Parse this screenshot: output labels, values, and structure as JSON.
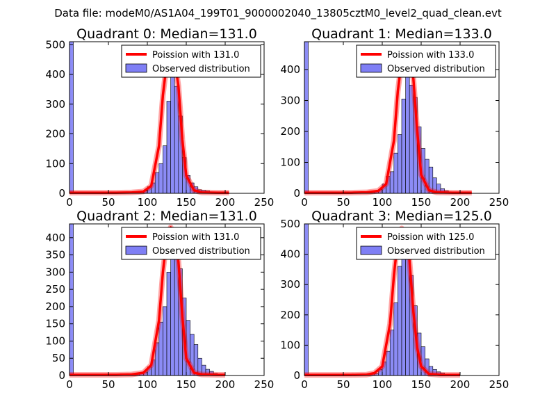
{
  "figure": {
    "suptitle": "Data file: modeM0/AS1A04_199T01_9000002040_13805cztM0_level2_quad_clean.evt"
  },
  "colors": {
    "poisson_line": "#ff0000",
    "hist_fill": "#7f7ff5",
    "hist_edge": "#000000"
  },
  "chart_data": [
    {
      "type": "bar",
      "title": "Quadrant 0: Median=131.0",
      "xlim": [
        0,
        250
      ],
      "ylim": [
        0,
        510
      ],
      "xticks": [
        0,
        50,
        100,
        150,
        200,
        250
      ],
      "yticks": [
        0,
        100,
        200,
        300,
        400,
        500
      ],
      "median": 131.0,
      "legend": [
        "Poission with 131.0",
        "Observed distribution"
      ],
      "legend_loc": "upper right",
      "hist_bins": [
        [
          0,
          510
        ],
        [
          75,
          5
        ],
        [
          80,
          2
        ],
        [
          85,
          4
        ],
        [
          90,
          3
        ],
        [
          95,
          8
        ],
        [
          100,
          22
        ],
        [
          105,
          35
        ],
        [
          110,
          70
        ],
        [
          115,
          100
        ],
        [
          120,
          160
        ],
        [
          125,
          310
        ],
        [
          130,
          400
        ],
        [
          135,
          360
        ],
        [
          140,
          260
        ],
        [
          145,
          120
        ],
        [
          150,
          60
        ],
        [
          155,
          35
        ],
        [
          160,
          22
        ],
        [
          165,
          12
        ],
        [
          170,
          10
        ],
        [
          175,
          8
        ],
        [
          180,
          5
        ],
        [
          185,
          3
        ],
        [
          190,
          2
        ]
      ],
      "poisson_series": [
        [
          0,
          2
        ],
        [
          60,
          2
        ],
        [
          80,
          3
        ],
        [
          95,
          6
        ],
        [
          105,
          25
        ],
        [
          115,
          160
        ],
        [
          120,
          330
        ],
        [
          125,
          440
        ],
        [
          130,
          490
        ],
        [
          135,
          450
        ],
        [
          140,
          360
        ],
        [
          145,
          180
        ],
        [
          150,
          60
        ],
        [
          160,
          10
        ],
        [
          170,
          3
        ],
        [
          190,
          2
        ],
        [
          205,
          2
        ]
      ]
    },
    {
      "type": "bar",
      "title": "Quadrant 1: Median=133.0",
      "xlim": [
        0,
        250
      ],
      "ylim": [
        0,
        490
      ],
      "xticks": [
        0,
        50,
        100,
        150,
        200,
        250
      ],
      "yticks": [
        0,
        100,
        200,
        300,
        400
      ],
      "median": 133.0,
      "legend": [
        "Poission with 133.0",
        "Observed distribution"
      ],
      "legend_loc": "upper right",
      "hist_bins": [
        [
          0,
          490
        ],
        [
          70,
          5
        ],
        [
          75,
          3
        ],
        [
          80,
          6
        ],
        [
          85,
          4
        ],
        [
          90,
          5
        ],
        [
          95,
          12
        ],
        [
          100,
          30
        ],
        [
          105,
          55
        ],
        [
          110,
          70
        ],
        [
          115,
          130
        ],
        [
          120,
          190
        ],
        [
          125,
          305
        ],
        [
          130,
          380
        ],
        [
          135,
          350
        ],
        [
          140,
          310
        ],
        [
          145,
          215
        ],
        [
          150,
          145
        ],
        [
          155,
          110
        ],
        [
          160,
          85
        ],
        [
          165,
          50
        ],
        [
          170,
          30
        ],
        [
          175,
          15
        ],
        [
          180,
          8
        ],
        [
          185,
          4
        ],
        [
          190,
          3
        ]
      ],
      "poisson_series": [
        [
          0,
          2
        ],
        [
          60,
          2
        ],
        [
          80,
          3
        ],
        [
          95,
          8
        ],
        [
          105,
          30
        ],
        [
          115,
          170
        ],
        [
          120,
          330
        ],
        [
          125,
          430
        ],
        [
          130,
          465
        ],
        [
          135,
          450
        ],
        [
          140,
          370
        ],
        [
          145,
          200
        ],
        [
          150,
          60
        ],
        [
          160,
          10
        ],
        [
          170,
          3
        ],
        [
          190,
          2
        ],
        [
          215,
          2
        ]
      ]
    },
    {
      "type": "bar",
      "title": "Quadrant 2: Median=131.0",
      "xlim": [
        0,
        250
      ],
      "ylim": [
        0,
        440
      ],
      "xticks": [
        0,
        50,
        100,
        150,
        200,
        250
      ],
      "yticks": [
        0,
        50,
        100,
        150,
        200,
        250,
        300,
        350,
        400
      ],
      "median": 131.0,
      "legend": [
        "Poission with 131.0",
        "Observed distribution"
      ],
      "legend_loc": "upper right",
      "hist_bins": [
        [
          0,
          440
        ],
        [
          65,
          5
        ],
        [
          75,
          3
        ],
        [
          85,
          4
        ],
        [
          90,
          5
        ],
        [
          95,
          10
        ],
        [
          100,
          25
        ],
        [
          105,
          45
        ],
        [
          110,
          95
        ],
        [
          115,
          155
        ],
        [
          120,
          200
        ],
        [
          125,
          300
        ],
        [
          130,
          380
        ],
        [
          135,
          340
        ],
        [
          140,
          310
        ],
        [
          145,
          225
        ],
        [
          150,
          160
        ],
        [
          155,
          120
        ],
        [
          160,
          90
        ],
        [
          165,
          50
        ],
        [
          170,
          30
        ],
        [
          175,
          18
        ],
        [
          180,
          12
        ],
        [
          185,
          6
        ],
        [
          190,
          4
        ],
        [
          195,
          2
        ]
      ],
      "poisson_series": [
        [
          0,
          2
        ],
        [
          60,
          2
        ],
        [
          80,
          3
        ],
        [
          95,
          8
        ],
        [
          105,
          30
        ],
        [
          115,
          160
        ],
        [
          120,
          300
        ],
        [
          125,
          400
        ],
        [
          130,
          430
        ],
        [
          135,
          410
        ],
        [
          140,
          330
        ],
        [
          145,
          170
        ],
        [
          150,
          50
        ],
        [
          160,
          8
        ],
        [
          170,
          3
        ],
        [
          190,
          2
        ],
        [
          200,
          2
        ]
      ]
    },
    {
      "type": "bar",
      "title": "Quadrant 3: Median=125.0",
      "xlim": [
        0,
        250
      ],
      "ylim": [
        0,
        500
      ],
      "xticks": [
        0,
        50,
        100,
        150,
        200,
        250
      ],
      "yticks": [
        0,
        100,
        200,
        300,
        400,
        500
      ],
      "median": 125.0,
      "legend": [
        "Poission with 125.0",
        "Observed distribution"
      ],
      "legend_loc": "upper right",
      "hist_bins": [
        [
          0,
          500
        ],
        [
          75,
          5
        ],
        [
          80,
          3
        ],
        [
          85,
          4
        ],
        [
          90,
          6
        ],
        [
          95,
          20
        ],
        [
          100,
          45
        ],
        [
          105,
          80
        ],
        [
          110,
          150
        ],
        [
          115,
          240
        ],
        [
          120,
          360
        ],
        [
          125,
          440
        ],
        [
          130,
          390
        ],
        [
          135,
          330
        ],
        [
          140,
          230
        ],
        [
          145,
          140
        ],
        [
          150,
          95
        ],
        [
          155,
          55
        ],
        [
          160,
          30
        ],
        [
          165,
          20
        ],
        [
          170,
          12
        ],
        [
          175,
          8
        ],
        [
          180,
          5
        ],
        [
          185,
          3
        ],
        [
          190,
          2
        ]
      ],
      "poisson_series": [
        [
          0,
          2
        ],
        [
          60,
          2
        ],
        [
          80,
          3
        ],
        [
          90,
          8
        ],
        [
          100,
          30
        ],
        [
          110,
          170
        ],
        [
          115,
          330
        ],
        [
          120,
          450
        ],
        [
          125,
          485
        ],
        [
          130,
          460
        ],
        [
          135,
          380
        ],
        [
          140,
          210
        ],
        [
          145,
          90
        ],
        [
          150,
          30
        ],
        [
          160,
          5
        ],
        [
          175,
          2
        ],
        [
          200,
          2
        ]
      ]
    }
  ]
}
